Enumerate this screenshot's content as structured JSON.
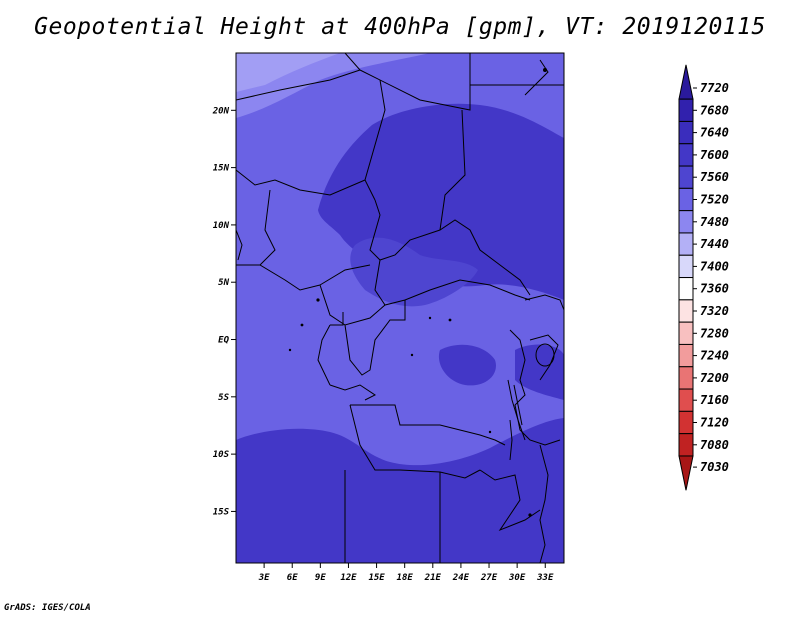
{
  "title": "Geopotential Height at 400hPa [gpm], VT: 2019120115",
  "credit": "GrADS: IGES/COLA",
  "map": {
    "lat_labels": [
      "20N",
      "15N",
      "10N",
      "5N",
      "EQ",
      "5S",
      "10S",
      "15S"
    ],
    "lat_values": [
      20,
      15,
      10,
      5,
      0,
      -5,
      -10,
      -15
    ],
    "lon_labels": [
      "3E",
      "6E",
      "9E",
      "12E",
      "15E",
      "18E",
      "21E",
      "24E",
      "27E",
      "30E",
      "33E"
    ],
    "lon_values": [
      3,
      6,
      9,
      12,
      15,
      18,
      21,
      24,
      27,
      30,
      33
    ],
    "lon_range": [
      0,
      35
    ],
    "lat_range": [
      -19.5,
      25
    ]
  },
  "colorbar": {
    "labels": [
      "7720",
      "7680",
      "7640",
      "7600",
      "7560",
      "7520",
      "7480",
      "7440",
      "7400",
      "7360",
      "7320",
      "7280",
      "7240",
      "7200",
      "7160",
      "7120",
      "7080",
      "7030"
    ],
    "colors": [
      "#2a1a9c",
      "#3121ad",
      "#3a2dbd",
      "#4337c7",
      "#4e45d0",
      "#6a62e4",
      "#8c86f0",
      "#b3b0f6",
      "#d8d8fa",
      "#ffffff",
      "#fde3e3",
      "#f8c0c0",
      "#f29c9c",
      "#e97474",
      "#e04e4e",
      "#d23232",
      "#c02222",
      "#a81616"
    ]
  }
}
